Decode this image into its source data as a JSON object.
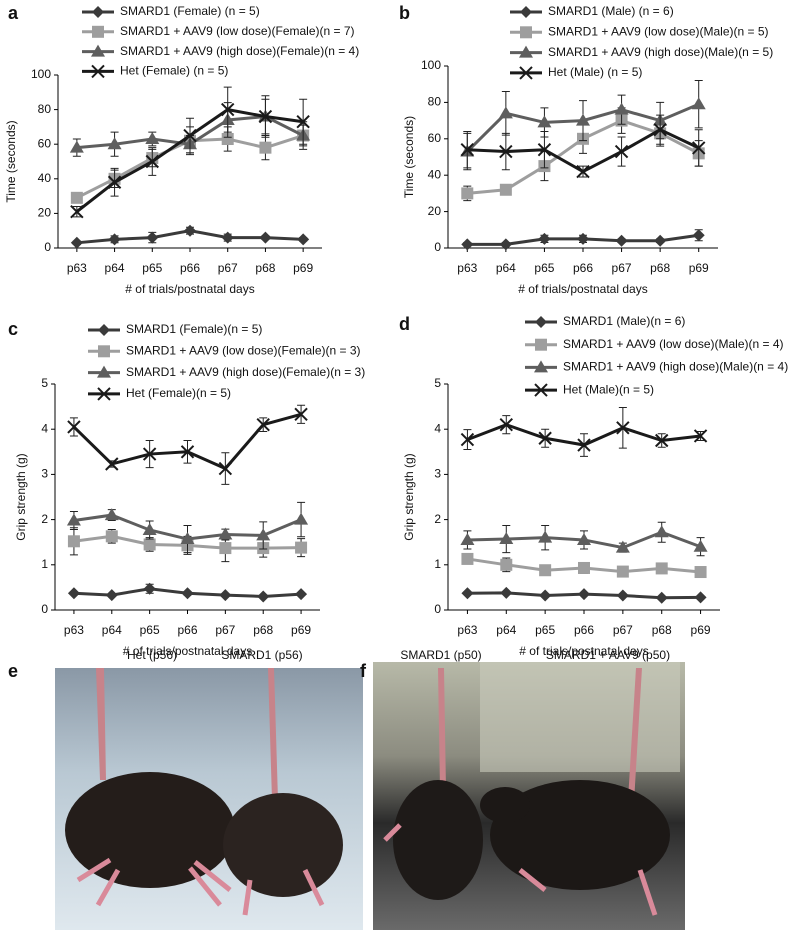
{
  "chart_data": [
    {
      "panel": "a",
      "type": "line",
      "ylabel": "Time (seconds)",
      "xlabel": "# of trials/postnatal days",
      "categories": [
        "p63",
        "p64",
        "p65",
        "p66",
        "p67",
        "p68",
        "p69"
      ],
      "ylim": [
        0,
        100
      ],
      "yticks": [
        0,
        20,
        40,
        60,
        80,
        100
      ],
      "series": [
        {
          "name": "SMARD1 (Female) (n = 5)",
          "color": "#3a3a3a",
          "marker": "diamond",
          "values": [
            3,
            5,
            6,
            10,
            6,
            6,
            5
          ],
          "errors": [
            1,
            2,
            3,
            2,
            2,
            1,
            1
          ]
        },
        {
          "name": "SMARD1 + AAV9 (low dose)(Female)(n = 7)",
          "color": "#9e9e9e",
          "marker": "square",
          "values": [
            29,
            40,
            52,
            62,
            63,
            58,
            65
          ],
          "errors": [
            3,
            5,
            5,
            8,
            7,
            7,
            6
          ]
        },
        {
          "name": "SMARD1 + AAV9 (high dose)(Female)(n = 4)",
          "color": "#5e5e5e",
          "marker": "triangle",
          "values": [
            58,
            60,
            63,
            60,
            74,
            76,
            65
          ],
          "errors": [
            5,
            7,
            4,
            5,
            10,
            10,
            8
          ]
        },
        {
          "name": "Het (Female) (n = 5)",
          "color": "#1a1a1a",
          "marker": "x",
          "values": [
            21,
            38,
            50,
            65,
            80,
            76,
            73
          ],
          "errors": [
            3,
            8,
            8,
            10,
            13,
            12,
            13
          ]
        }
      ]
    },
    {
      "panel": "b",
      "type": "line",
      "ylabel": "Time (seconds)",
      "xlabel": "# of trials/postnatal days",
      "categories": [
        "p63",
        "p64",
        "p65",
        "p66",
        "p67",
        "p68",
        "p69"
      ],
      "ylim": [
        0,
        100
      ],
      "yticks": [
        0,
        20,
        40,
        60,
        80,
        100
      ],
      "series": [
        {
          "name": "SMARD1 (Male) (n = 6)",
          "color": "#3a3a3a",
          "marker": "diamond",
          "values": [
            2,
            2,
            5,
            5,
            4,
            4,
            7
          ],
          "errors": [
            1,
            1,
            2,
            2,
            1,
            1,
            3
          ]
        },
        {
          "name": "SMARD1 + AAV9 (low dose)(Male)(n = 5)",
          "color": "#9e9e9e",
          "marker": "square",
          "values": [
            30,
            32,
            45,
            60,
            70,
            63,
            52
          ],
          "errors": [
            4,
            2,
            8,
            8,
            7,
            7,
            7
          ]
        },
        {
          "name": "SMARD1 + AAV9 (high dose)(Male)(n = 5)",
          "color": "#5e5e5e",
          "marker": "triangle",
          "values": [
            53,
            74,
            69,
            70,
            76,
            70,
            79
          ],
          "errors": [
            10,
            12,
            8,
            11,
            8,
            10,
            13
          ]
        },
        {
          "name": "Het (Male) (n = 5)",
          "color": "#1a1a1a",
          "marker": "x",
          "values": [
            54,
            53,
            54,
            42,
            53,
            65,
            55
          ],
          "errors": [
            10,
            10,
            10,
            3,
            8,
            8,
            10
          ]
        }
      ]
    },
    {
      "panel": "c",
      "type": "line",
      "ylabel": "Grip strength (g)",
      "xlabel": "# of trials/postnatal days",
      "categories": [
        "p63",
        "p64",
        "p65",
        "p66",
        "p67",
        "p68",
        "p69"
      ],
      "ylim": [
        0,
        5
      ],
      "yticks": [
        0,
        1,
        2,
        3,
        4,
        5
      ],
      "series": [
        {
          "name": "SMARD1 (Female)(n = 5)",
          "color": "#3a3a3a",
          "marker": "diamond",
          "values": [
            0.37,
            0.33,
            0.47,
            0.37,
            0.33,
            0.3,
            0.35
          ],
          "errors": [
            0.03,
            0.03,
            0.1,
            0.04,
            0.03,
            0.03,
            0.03
          ]
        },
        {
          "name": "SMARD1 + AAV9 (low dose)(Female)(n = 3)",
          "color": "#9e9e9e",
          "marker": "square",
          "values": [
            1.52,
            1.63,
            1.45,
            1.43,
            1.37,
            1.37,
            1.38
          ],
          "errors": [
            0.3,
            0.15,
            0.15,
            0.2,
            0.3,
            0.2,
            0.2
          ]
        },
        {
          "name": "SMARD1 + AAV9 (high dose)(Female)(n = 3)",
          "color": "#5e5e5e",
          "marker": "triangle",
          "values": [
            1.98,
            2.1,
            1.77,
            1.57,
            1.67,
            1.65,
            2.0
          ],
          "errors": [
            0.2,
            0.12,
            0.2,
            0.3,
            0.12,
            0.3,
            0.38
          ]
        },
        {
          "name": "Het (Female)(n = 5)",
          "color": "#1a1a1a",
          "marker": "x",
          "values": [
            4.05,
            3.23,
            3.45,
            3.5,
            3.13,
            4.1,
            4.33
          ],
          "errors": [
            0.2,
            0.07,
            0.3,
            0.25,
            0.35,
            0.15,
            0.2
          ]
        }
      ]
    },
    {
      "panel": "d",
      "type": "line",
      "ylabel": "Grip strength (g)",
      "xlabel": "# of trials/postnatal days",
      "categories": [
        "p63",
        "p64",
        "p65",
        "p66",
        "p67",
        "p68",
        "p69"
      ],
      "ylim": [
        0,
        5
      ],
      "yticks": [
        0,
        1,
        2,
        3,
        4,
        5
      ],
      "series": [
        {
          "name": "SMARD1 (Male)(n = 6)",
          "color": "#3a3a3a",
          "marker": "diamond",
          "values": [
            0.37,
            0.38,
            0.32,
            0.35,
            0.32,
            0.27,
            0.28
          ],
          "errors": [
            0.03,
            0.03,
            0.03,
            0.03,
            0.03,
            0.03,
            0.03
          ]
        },
        {
          "name": "SMARD1 + AAV9 (low dose)(Male)(n = 4)",
          "color": "#9e9e9e",
          "marker": "square",
          "values": [
            1.13,
            1.0,
            0.88,
            0.93,
            0.85,
            0.92,
            0.84
          ],
          "errors": [
            0.1,
            0.15,
            0.1,
            0.12,
            0.1,
            0.07,
            0.05
          ]
        },
        {
          "name": "SMARD1 + AAV9 (high dose)(Male)(n = 4)",
          "color": "#5e5e5e",
          "marker": "triangle",
          "values": [
            1.55,
            1.57,
            1.6,
            1.55,
            1.38,
            1.72,
            1.4
          ],
          "errors": [
            0.2,
            0.3,
            0.27,
            0.2,
            0.1,
            0.22,
            0.2
          ]
        },
        {
          "name": "Het (Male)(n = 5)",
          "color": "#1a1a1a",
          "marker": "x",
          "values": [
            3.77,
            4.1,
            3.8,
            3.65,
            4.03,
            3.75,
            3.85
          ],
          "errors": [
            0.22,
            0.2,
            0.2,
            0.25,
            0.45,
            0.15,
            0.1
          ]
        }
      ]
    }
  ],
  "photos": [
    {
      "panel": "e",
      "labels": [
        "Het (p56)",
        "SMARD1 (p56)"
      ]
    },
    {
      "panel": "f",
      "labels": [
        "SMARD1 (p50)",
        "SMARD1 + AAV9 (p50)"
      ]
    }
  ]
}
